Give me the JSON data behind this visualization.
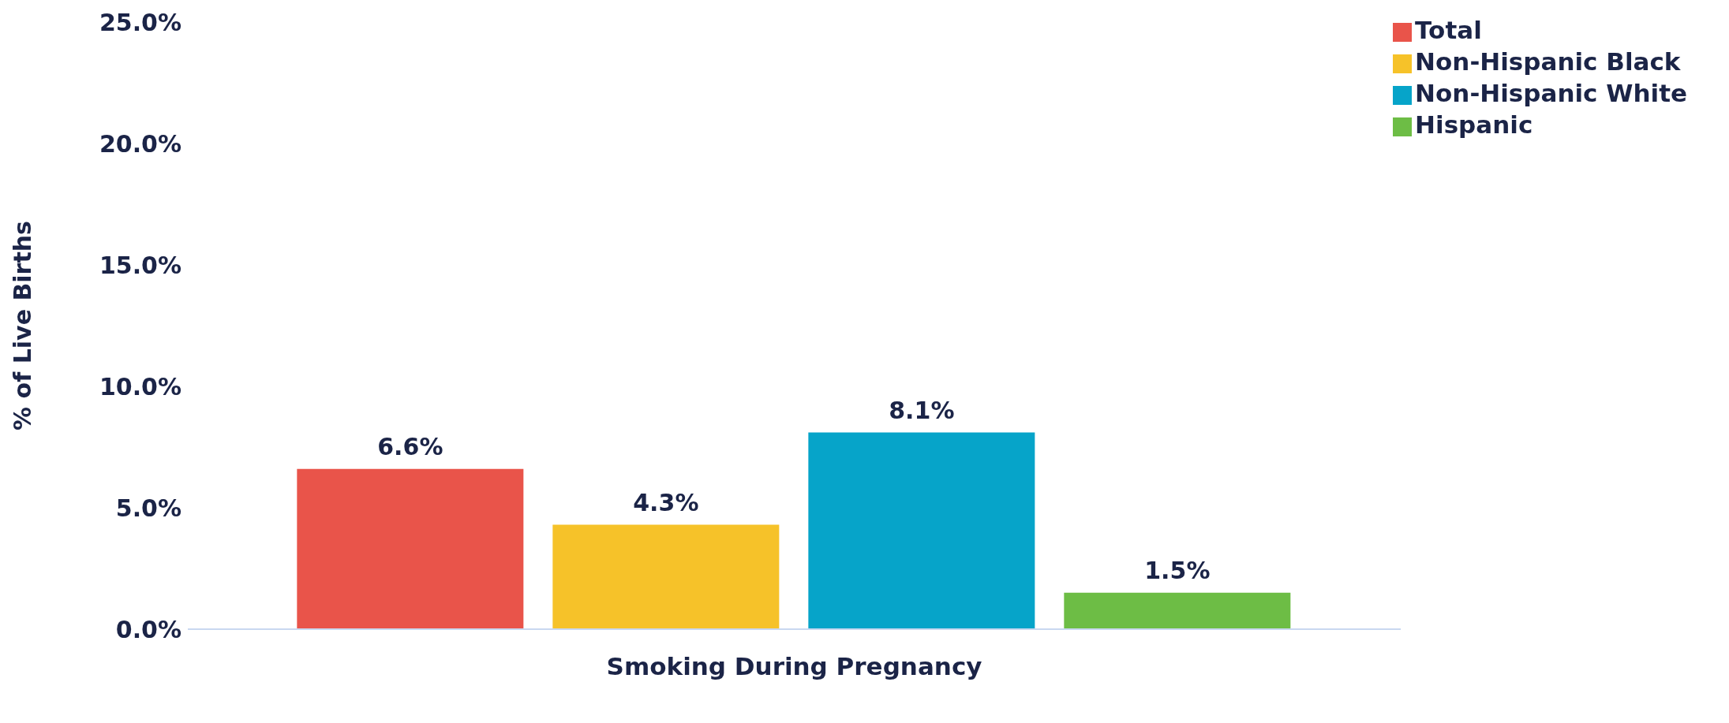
{
  "chart_data": {
    "type": "bar",
    "categories": [
      "Smoking During Pregnancy"
    ],
    "ylabel": "% of Live Births",
    "series": [
      {
        "name": "Total",
        "color": "#e9544a",
        "values": [
          6.6
        ],
        "value_labels": [
          "6.6%"
        ]
      },
      {
        "name": "Non-Hispanic Black",
        "color": "#f6c229",
        "values": [
          4.3
        ],
        "value_labels": [
          "4.3%"
        ]
      },
      {
        "name": "Non-Hispanic White",
        "color": "#06a4c9",
        "values": [
          8.1
        ],
        "value_labels": [
          "8.1%"
        ]
      },
      {
        "name": "Hispanic",
        "color": "#6dbd45",
        "values": [
          1.5
        ],
        "value_labels": [
          "1.5%"
        ]
      }
    ],
    "ylim": [
      0,
      25
    ],
    "yticks": [
      {
        "value": 0,
        "label": "0.0%"
      },
      {
        "value": 5,
        "label": "5.0%"
      },
      {
        "value": 10,
        "label": "10.0%"
      },
      {
        "value": 15,
        "label": "15.0%"
      },
      {
        "value": 20,
        "label": "20.0%"
      },
      {
        "value": 25,
        "label": "25.0%"
      }
    ],
    "grid": false,
    "legend": "top right"
  }
}
